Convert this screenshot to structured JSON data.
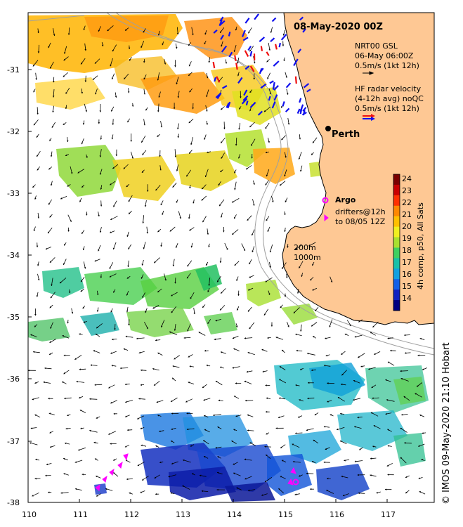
{
  "title": "08-May-2020 00Z",
  "credit": "© IMOS 09-May-2020 21:10 Hobart",
  "legend": {
    "gsl_line1": "NRT00 GSL",
    "gsl_line2": "06-May 06:00Z",
    "gsl_line3": "0.5m/s (1kt 12h)",
    "radar_line1": "HF radar velocity",
    "radar_line2": "(4-12h avg) noQC",
    "radar_line3": "0.5m/s (1kt 12h)",
    "argo_label": "Argo",
    "drifters_line1": "drifters@12h",
    "drifters_line2": "to 08/05 12Z",
    "depth_200": "200m",
    "depth_1000": "1000m",
    "city": "Perth"
  },
  "colorbar": {
    "label": "4h comp, p50, All Sats",
    "min": 13.5,
    "max": 24.5,
    "ticks": [
      "24",
      "23",
      "22",
      "21",
      "20",
      "19",
      "18",
      "17",
      "16",
      "15",
      "14"
    ]
  },
  "axes": {
    "lon_ticks": [
      "110",
      "111",
      "112",
      "113",
      "114",
      "115",
      "116",
      "117"
    ],
    "lat_ticks": [
      "-31",
      "-32",
      "-33",
      "-34",
      "-35",
      "-36",
      "-37",
      "-38"
    ]
  },
  "colors": {
    "land": "#fec894",
    "arrow": "#000000",
    "radar_blue": "#1010ee",
    "radar_red": "#ee1010",
    "argo": "#ff00ff",
    "isobath": "#a0a0a0"
  }
}
